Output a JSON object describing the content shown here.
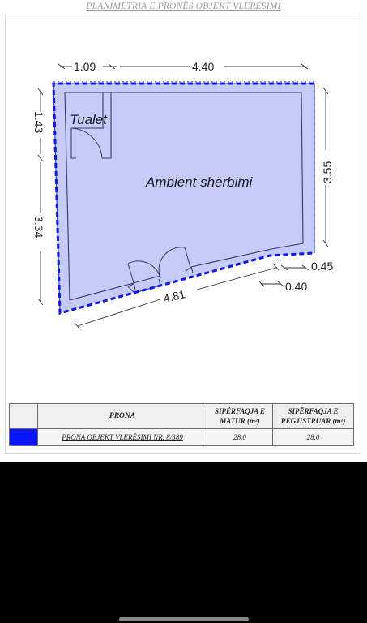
{
  "document": {
    "title": "PLANIMETRIA E PRONËS OBJEKT VLERËSIMI"
  },
  "plan": {
    "rooms": [
      {
        "id": "tualet",
        "label": "Tualet"
      },
      {
        "id": "ambient",
        "label": "Ambient shërbimi"
      }
    ],
    "dimensions": {
      "top_left": "1.09",
      "top_main": "4.40",
      "left_upper": "1.43",
      "left_lower": "3.34",
      "right": "3.55",
      "bottom": "4.81",
      "step_a": "0.45",
      "step_b": "0.40"
    },
    "colors": {
      "fill": "#c5ccfb",
      "wall_stroke": "#333366",
      "boundary": "#0a14ff"
    }
  },
  "legend": {
    "headers": {
      "prona": "PRONA",
      "siperfaqja_matur": "SIPËRFAQJA E MATUR (m²)",
      "siperfaqja_regjistruar": "SIPËRFAQJA E REGJISTRUAR (m²)"
    },
    "rows": [
      {
        "prona": "PRONA OBJEKT VLERËSIMI NR. 8/389",
        "matur": "28.0",
        "regjistruar": "28.0",
        "color": "#0a14ff"
      }
    ]
  }
}
